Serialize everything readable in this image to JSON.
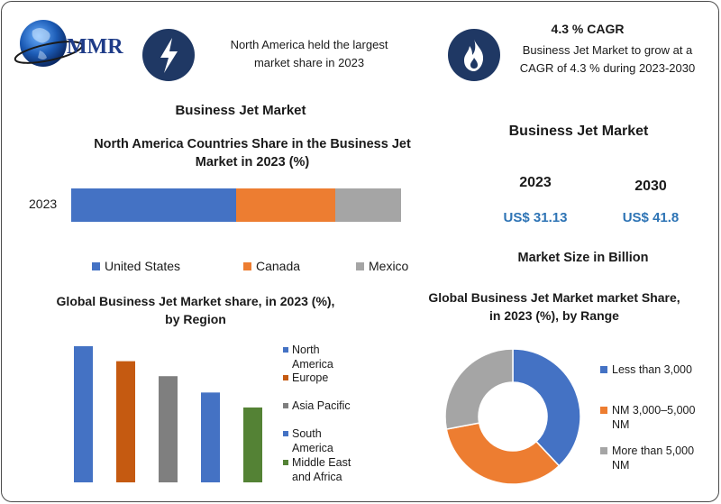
{
  "header": {
    "brand": "MMR",
    "highlight_text": "North America held the largest market share in 2023",
    "cagr_title": "4.3 % CAGR",
    "cagr_text": "Business Jet Market to grow at a CAGR of 4.3 % during 2023-2030",
    "icons": [
      "globe-logo",
      "lightning-icon",
      "flame-icon"
    ]
  },
  "left_section_title": "Business Jet Market",
  "right_panel": {
    "title": "Business Jet Market",
    "year1": "2023",
    "year2": "2030",
    "value1": "US$ 31.13",
    "value2": "US$ 41.8",
    "caption": "Market Size in Billion",
    "value_color": "#2e74b5"
  },
  "chart_data": [
    {
      "type": "bar",
      "orientation": "horizontal-stacked",
      "title": "North America Countries Share in the  Business Jet Market in 2023 (%)",
      "categories": [
        "2023"
      ],
      "series": [
        {
          "name": "United States",
          "values": [
            50
          ],
          "color": "#4472c4"
        },
        {
          "name": "Canada",
          "values": [
            30
          ],
          "color": "#ed7d31"
        },
        {
          "name": "Mexico",
          "values": [
            20
          ],
          "color": "#a5a5a5"
        }
      ],
      "legend": "bottom"
    },
    {
      "type": "bar",
      "title": "Global Business Jet Market share, in 2023 (%), by Region",
      "categories": [
        "North America",
        "Europe",
        "Asia Pacific",
        "South America",
        "Middle East and Africa"
      ],
      "values": [
        100,
        89,
        78,
        66,
        55
      ],
      "colors": [
        "#4472c4",
        "#c55a11",
        "#7f7f7f",
        "#4472c4",
        "#548235"
      ],
      "legend": "right"
    },
    {
      "type": "pie",
      "subtype": "donut",
      "title": "Global Business Jet Market market Share, in 2023 (%), by Range",
      "labels": [
        "Less than 3,000",
        "NM 3,000–5,000 NM",
        "More than 5,000 NM"
      ],
      "values": [
        38,
        34,
        28
      ],
      "colors": [
        "#4472c4",
        "#ed7d31",
        "#a5a5a5"
      ],
      "legend": "right"
    }
  ]
}
